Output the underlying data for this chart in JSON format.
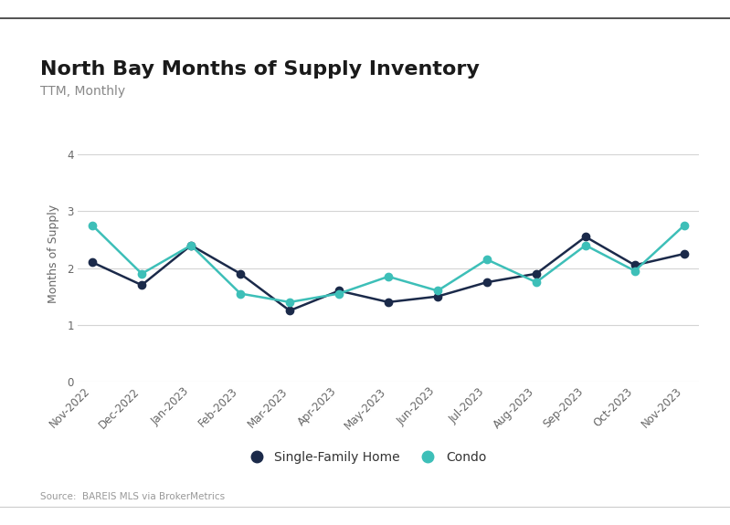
{
  "title": "North Bay Months of Supply Inventory",
  "subtitle": "TTM, Monthly",
  "ylabel": "Months of Supply",
  "source": "Source:  BAREIS MLS via BrokerMetrics",
  "categories": [
    "Nov-2022",
    "Dec-2022",
    "Jan-2023",
    "Feb-2023",
    "Mar-2023",
    "Apr-2023",
    "May-2023",
    "Jun-2023",
    "Jul-2023",
    "Aug-2023",
    "Sep-2023",
    "Oct-2023",
    "Nov-2023"
  ],
  "sfh_values": [
    2.1,
    1.7,
    2.4,
    1.9,
    1.25,
    1.6,
    1.4,
    1.5,
    1.75,
    1.9,
    2.55,
    2.05,
    2.25
  ],
  "condo_values": [
    2.75,
    1.9,
    2.4,
    1.55,
    1.4,
    1.55,
    1.85,
    1.6,
    2.15,
    1.75,
    2.4,
    1.95,
    2.75
  ],
  "sfh_color": "#1b2a4a",
  "condo_color": "#3dbfb8",
  "sfh_label": "Single-Family Home",
  "condo_label": "Condo",
  "ylim": [
    0,
    4.5
  ],
  "yticks": [
    0,
    1,
    2,
    3,
    4
  ],
  "background_color": "#ffffff",
  "grid_color": "#d4d4d4",
  "title_fontsize": 16,
  "subtitle_fontsize": 10,
  "axis_label_fontsize": 9,
  "tick_fontsize": 8.5,
  "legend_fontsize": 10,
  "source_fontsize": 7.5,
  "line_width": 1.8,
  "marker_size": 6
}
